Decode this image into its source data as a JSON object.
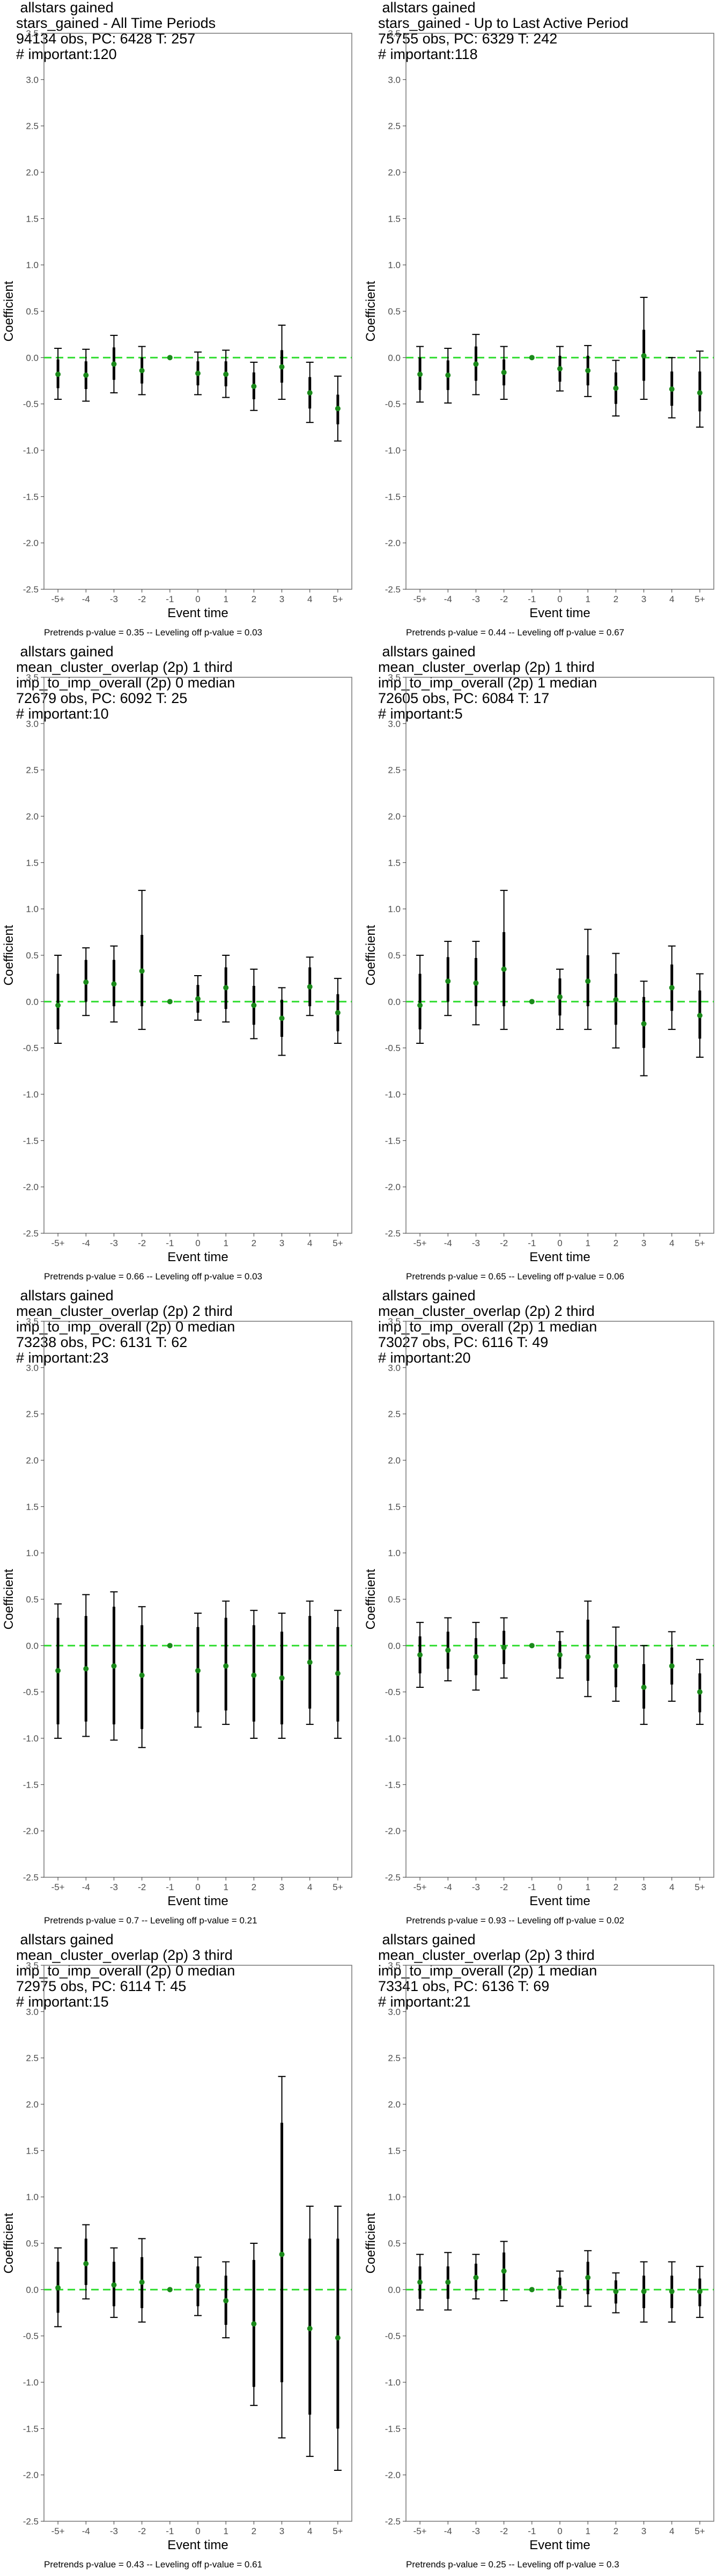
{
  "chart_data": [
    {
      "type": "scatter",
      "title_lines": [
        " allstars gained",
        "stars_gained - All Time Periods",
        "94134 obs, PC: 6428 T: 257",
        "# important:120"
      ],
      "xlabel": "Event time",
      "ylabel": "Coefficient",
      "categories": [
        "-5+",
        "-4",
        "-3",
        "-2",
        "-1",
        "0",
        "1",
        "2",
        "3",
        "4",
        "5+"
      ],
      "ylim": [
        -2.5,
        3.5
      ],
      "yticks": [
        "-2.5",
        "-2.0",
        "-1.5",
        "-1.0",
        "-0.5",
        "0.0",
        "0.5",
        "1.0",
        "1.5",
        "2.0",
        "2.5",
        "3.0",
        "3.5"
      ],
      "reference_line": 0,
      "point": [
        -0.18,
        -0.19,
        -0.07,
        -0.14,
        0.0,
        -0.17,
        -0.18,
        -0.31,
        -0.1,
        -0.38,
        -0.55
      ],
      "ci_inner": [
        [
          -0.33,
          -0.02
        ],
        [
          -0.34,
          -0.04
        ],
        [
          -0.24,
          0.11
        ],
        [
          -0.28,
          0.0
        ],
        [
          0.0,
          0.0
        ],
        [
          -0.3,
          -0.04
        ],
        [
          -0.31,
          -0.04
        ],
        [
          -0.45,
          -0.16
        ],
        [
          -0.27,
          0.08
        ],
        [
          -0.55,
          -0.21
        ],
        [
          -0.72,
          -0.4
        ]
      ],
      "ci_outer": [
        [
          -0.45,
          0.1
        ],
        [
          -0.47,
          0.09
        ],
        [
          -0.38,
          0.24
        ],
        [
          -0.4,
          0.12
        ],
        [
          0.0,
          0.0
        ],
        [
          -0.4,
          0.06
        ],
        [
          -0.43,
          0.08
        ],
        [
          -0.57,
          -0.05
        ],
        [
          -0.45,
          0.35
        ],
        [
          -0.7,
          -0.05
        ],
        [
          -0.9,
          -0.2
        ]
      ],
      "footer": "Pretrends p-value = 0.35 -- Leveling off p-value = 0.03"
    },
    {
      "type": "scatter",
      "title_lines": [
        " allstars gained",
        "stars_gained - Up to Last Active Period",
        "75755 obs, PC: 6329 T: 242",
        "# important:118"
      ],
      "xlabel": "Event time",
      "ylabel": "Coefficient",
      "categories": [
        "-5+",
        "-4",
        "-3",
        "-2",
        "-1",
        "0",
        "1",
        "2",
        "3",
        "4",
        "5+"
      ],
      "ylim": [
        -2.5,
        3.5
      ],
      "yticks": [
        "-2.5",
        "-2.0",
        "-1.5",
        "-1.0",
        "-0.5",
        "0.0",
        "0.5",
        "1.0",
        "1.5",
        "2.0",
        "2.5",
        "3.0",
        "3.5"
      ],
      "reference_line": 0,
      "point": [
        -0.18,
        -0.19,
        -0.07,
        -0.16,
        0.0,
        -0.12,
        -0.14,
        -0.33,
        0.02,
        -0.34,
        -0.38
      ],
      "ci_inner": [
        [
          -0.35,
          0.0
        ],
        [
          -0.35,
          -0.03
        ],
        [
          -0.25,
          0.12
        ],
        [
          -0.3,
          -0.02
        ],
        [
          0.0,
          0.0
        ],
        [
          -0.26,
          0.02
        ],
        [
          -0.3,
          0.02
        ],
        [
          -0.5,
          -0.16
        ],
        [
          -0.25,
          0.3
        ],
        [
          -0.52,
          -0.15
        ],
        [
          -0.58,
          -0.15
        ]
      ],
      "ci_outer": [
        [
          -0.48,
          0.12
        ],
        [
          -0.49,
          0.1
        ],
        [
          -0.4,
          0.25
        ],
        [
          -0.45,
          0.12
        ],
        [
          0.0,
          0.0
        ],
        [
          -0.36,
          0.12
        ],
        [
          -0.42,
          0.13
        ],
        [
          -0.63,
          -0.03
        ],
        [
          -0.45,
          0.65
        ],
        [
          -0.65,
          0.0
        ],
        [
          -0.75,
          0.07
        ]
      ],
      "footer": "Pretrends p-value = 0.44 -- Leveling off p-value = 0.67"
    },
    {
      "type": "scatter",
      "title_lines": [
        " allstars gained",
        "mean_cluster_overlap (2p) 1 third",
        "imp_to_imp_overall (2p) 0 median",
        "72679 obs, PC: 6092 T: 25",
        "# important:10"
      ],
      "xlabel": "Event time",
      "ylabel": "Coefficient",
      "categories": [
        "-5+",
        "-4",
        "-3",
        "-2",
        "-1",
        "0",
        "1",
        "2",
        "3",
        "4",
        "5+"
      ],
      "ylim": [
        -2.5,
        3.5
      ],
      "yticks": [
        "-2.5",
        "-2.0",
        "-1.5",
        "-1.0",
        "-0.5",
        "0.0",
        "0.5",
        "1.0",
        "1.5",
        "2.0",
        "2.5",
        "3.0",
        "3.5"
      ],
      "reference_line": 0,
      "point": [
        -0.04,
        0.21,
        0.19,
        0.33,
        0.0,
        0.03,
        0.15,
        -0.04,
        -0.18,
        0.16,
        -0.12
      ],
      "ci_inner": [
        [
          -0.3,
          0.3
        ],
        [
          0.0,
          0.45
        ],
        [
          -0.05,
          0.45
        ],
        [
          -0.05,
          0.72
        ],
        [
          0.0,
          0.0
        ],
        [
          -0.12,
          0.18
        ],
        [
          -0.08,
          0.37
        ],
        [
          -0.25,
          0.17
        ],
        [
          -0.38,
          0.02
        ],
        [
          -0.05,
          0.37
        ],
        [
          -0.32,
          0.08
        ]
      ],
      "ci_outer": [
        [
          -0.45,
          0.5
        ],
        [
          -0.15,
          0.58
        ],
        [
          -0.22,
          0.6
        ],
        [
          -0.3,
          1.2
        ],
        [
          0.0,
          0.0
        ],
        [
          -0.2,
          0.28
        ],
        [
          -0.22,
          0.5
        ],
        [
          -0.4,
          0.35
        ],
        [
          -0.58,
          0.15
        ],
        [
          -0.15,
          0.48
        ],
        [
          -0.45,
          0.25
        ]
      ],
      "footer": "Pretrends p-value = 0.66 -- Leveling off p-value = 0.03"
    },
    {
      "type": "scatter",
      "title_lines": [
        " allstars gained",
        "mean_cluster_overlap (2p) 1 third",
        "imp_to_imp_overall (2p) 1 median",
        "72605 obs, PC: 6084 T: 17",
        "# important:5"
      ],
      "xlabel": "Event time",
      "ylabel": "Coefficient",
      "categories": [
        "-5+",
        "-4",
        "-3",
        "-2",
        "-1",
        "0",
        "1",
        "2",
        "3",
        "4",
        "5+"
      ],
      "ylim": [
        -2.5,
        3.5
      ],
      "yticks": [
        "-2.5",
        "-2.0",
        "-1.5",
        "-1.0",
        "-0.5",
        "0.0",
        "0.5",
        "1.0",
        "1.5",
        "2.0",
        "2.5",
        "3.0",
        "3.5"
      ],
      "reference_line": 0,
      "point": [
        -0.04,
        0.22,
        0.2,
        0.35,
        0.0,
        0.05,
        0.22,
        0.02,
        -0.24,
        0.15,
        -0.15
      ],
      "ci_inner": [
        [
          -0.3,
          0.3
        ],
        [
          0.0,
          0.48
        ],
        [
          -0.05,
          0.47
        ],
        [
          -0.05,
          0.75
        ],
        [
          0.0,
          0.0
        ],
        [
          -0.15,
          0.25
        ],
        [
          -0.05,
          0.5
        ],
        [
          -0.25,
          0.3
        ],
        [
          -0.5,
          0.05
        ],
        [
          -0.1,
          0.4
        ],
        [
          -0.4,
          0.12
        ]
      ],
      "ci_outer": [
        [
          -0.45,
          0.5
        ],
        [
          -0.15,
          0.65
        ],
        [
          -0.25,
          0.65
        ],
        [
          -0.3,
          1.2
        ],
        [
          0.0,
          0.0
        ],
        [
          -0.3,
          0.35
        ],
        [
          -0.3,
          0.78
        ],
        [
          -0.5,
          0.52
        ],
        [
          -0.8,
          0.22
        ],
        [
          -0.3,
          0.6
        ],
        [
          -0.6,
          0.3
        ]
      ],
      "footer": "Pretrends p-value = 0.65 -- Leveling off p-value = 0.06"
    },
    {
      "type": "scatter",
      "title_lines": [
        " allstars gained",
        "mean_cluster_overlap (2p) 2 third",
        "imp_to_imp_overall (2p) 0 median",
        "73238 obs, PC: 6131 T: 62",
        "# important:23"
      ],
      "xlabel": "Event time",
      "ylabel": "Coefficient",
      "categories": [
        "-5+",
        "-4",
        "-3",
        "-2",
        "-1",
        "0",
        "1",
        "2",
        "3",
        "4",
        "5+"
      ],
      "ylim": [
        -2.5,
        3.5
      ],
      "yticks": [
        "-2.5",
        "-2.0",
        "-1.5",
        "-1.0",
        "-0.5",
        "0.0",
        "0.5",
        "1.0",
        "1.5",
        "2.0",
        "2.5",
        "3.0",
        "3.5"
      ],
      "reference_line": 0,
      "point": [
        -0.27,
        -0.25,
        -0.22,
        -0.32,
        0.0,
        -0.27,
        -0.22,
        -0.32,
        -0.35,
        -0.18,
        -0.3
      ],
      "ci_inner": [
        [
          -0.85,
          0.3
        ],
        [
          -0.82,
          0.32
        ],
        [
          -0.85,
          0.42
        ],
        [
          -0.9,
          0.22
        ],
        [
          0.0,
          0.0
        ],
        [
          -0.72,
          0.2
        ],
        [
          -0.7,
          0.3
        ],
        [
          -0.82,
          0.22
        ],
        [
          -0.85,
          0.15
        ],
        [
          -0.68,
          0.32
        ],
        [
          -0.82,
          0.2
        ]
      ],
      "ci_outer": [
        [
          -1.0,
          0.45
        ],
        [
          -0.98,
          0.55
        ],
        [
          -1.02,
          0.58
        ],
        [
          -1.1,
          0.42
        ],
        [
          0.0,
          0.0
        ],
        [
          -0.88,
          0.35
        ],
        [
          -0.85,
          0.48
        ],
        [
          -1.0,
          0.38
        ],
        [
          -1.0,
          0.35
        ],
        [
          -0.85,
          0.48
        ],
        [
          -1.0,
          0.38
        ]
      ],
      "footer": "Pretrends p-value = 0.7 -- Leveling off p-value = 0.21"
    },
    {
      "type": "scatter",
      "title_lines": [
        " allstars gained",
        "mean_cluster_overlap (2p) 2 third",
        "imp_to_imp_overall (2p) 1 median",
        "73027 obs, PC: 6116 T: 49",
        "# important:20"
      ],
      "xlabel": "Event time",
      "ylabel": "Coefficient",
      "categories": [
        "-5+",
        "-4",
        "-3",
        "-2",
        "-1",
        "0",
        "1",
        "2",
        "3",
        "4",
        "5+"
      ],
      "ylim": [
        -2.5,
        3.5
      ],
      "yticks": [
        "-2.5",
        "-2.0",
        "-1.5",
        "-1.0",
        "-0.5",
        "0.0",
        "0.5",
        "1.0",
        "1.5",
        "2.0",
        "2.5",
        "3.0",
        "3.5"
      ],
      "reference_line": 0,
      "point": [
        -0.1,
        -0.05,
        -0.12,
        -0.02,
        0.0,
        -0.1,
        -0.12,
        -0.22,
        -0.45,
        -0.22,
        -0.5
      ],
      "ci_inner": [
        [
          -0.3,
          0.1
        ],
        [
          -0.25,
          0.15
        ],
        [
          -0.32,
          0.08
        ],
        [
          -0.2,
          0.16
        ],
        [
          0.0,
          0.0
        ],
        [
          -0.25,
          0.05
        ],
        [
          -0.38,
          0.28
        ],
        [
          -0.45,
          0.0
        ],
        [
          -0.68,
          -0.2
        ],
        [
          -0.42,
          -0.02
        ],
        [
          -0.72,
          -0.3
        ]
      ],
      "ci_outer": [
        [
          -0.45,
          0.25
        ],
        [
          -0.38,
          0.3
        ],
        [
          -0.48,
          0.25
        ],
        [
          -0.35,
          0.3
        ],
        [
          0.0,
          0.0
        ],
        [
          -0.35,
          0.15
        ],
        [
          -0.55,
          0.48
        ],
        [
          -0.6,
          0.2
        ],
        [
          -0.85,
          0.0
        ],
        [
          -0.6,
          0.15
        ],
        [
          -0.85,
          -0.15
        ]
      ],
      "footer": "Pretrends p-value = 0.93 -- Leveling off p-value = 0.02"
    },
    {
      "type": "scatter",
      "title_lines": [
        " allstars gained",
        "mean_cluster_overlap (2p) 3 third",
        "imp_to_imp_overall (2p) 0 median",
        "72975 obs, PC: 6114 T: 45",
        "# important:15"
      ],
      "xlabel": "Event time",
      "ylabel": "Coefficient",
      "categories": [
        "-5+",
        "-4",
        "-3",
        "-2",
        "-1",
        "0",
        "1",
        "2",
        "3",
        "4",
        "5+"
      ],
      "ylim": [
        -2.5,
        3.5
      ],
      "yticks": [
        "-2.5",
        "-2.0",
        "-1.5",
        "-1.0",
        "-0.5",
        "0.0",
        "0.5",
        "1.0",
        "1.5",
        "2.0",
        "2.5",
        "3.0",
        "3.5"
      ],
      "reference_line": 0,
      "point": [
        0.02,
        0.28,
        0.05,
        0.08,
        0.0,
        0.04,
        -0.12,
        -0.37,
        0.38,
        -0.42,
        -0.52
      ],
      "ci_inner": [
        [
          -0.25,
          0.3
        ],
        [
          0.05,
          0.55
        ],
        [
          -0.18,
          0.3
        ],
        [
          -0.2,
          0.35
        ],
        [
          0.0,
          0.0
        ],
        [
          -0.18,
          0.25
        ],
        [
          -0.38,
          0.15
        ],
        [
          -1.05,
          0.32
        ],
        [
          -1.0,
          1.8
        ],
        [
          -1.35,
          0.55
        ],
        [
          -1.5,
          0.55
        ]
      ],
      "ci_outer": [
        [
          -0.4,
          0.45
        ],
        [
          -0.1,
          0.7
        ],
        [
          -0.3,
          0.45
        ],
        [
          -0.35,
          0.55
        ],
        [
          0.0,
          0.0
        ],
        [
          -0.28,
          0.35
        ],
        [
          -0.52,
          0.3
        ],
        [
          -1.25,
          0.5
        ],
        [
          -1.6,
          2.3
        ],
        [
          -1.8,
          0.9
        ],
        [
          -1.95,
          0.9
        ]
      ],
      "footer": "Pretrends p-value = 0.43 -- Leveling off p-value = 0.61"
    },
    {
      "type": "scatter",
      "title_lines": [
        " allstars gained",
        "mean_cluster_overlap (2p) 3 third",
        "imp_to_imp_overall (2p) 1 median",
        "73341 obs, PC: 6136 T: 69",
        "# important:21"
      ],
      "xlabel": "Event time",
      "ylabel": "Coefficient",
      "categories": [
        "-5+",
        "-4",
        "-3",
        "-2",
        "-1",
        "0",
        "1",
        "2",
        "3",
        "4",
        "5+"
      ],
      "ylim": [
        -2.5,
        3.5
      ],
      "yticks": [
        "-2.5",
        "-2.0",
        "-1.5",
        "-1.0",
        "-0.5",
        "0.0",
        "0.5",
        "1.0",
        "1.5",
        "2.0",
        "2.5",
        "3.0",
        "3.5"
      ],
      "reference_line": 0,
      "point": [
        0.08,
        0.08,
        0.13,
        0.2,
        0.0,
        0.02,
        0.13,
        -0.02,
        -0.02,
        -0.02,
        -0.02
      ],
      "ci_inner": [
        [
          -0.1,
          0.25
        ],
        [
          -0.1,
          0.25
        ],
        [
          -0.02,
          0.28
        ],
        [
          0.0,
          0.4
        ],
        [
          0.0,
          0.0
        ],
        [
          -0.1,
          0.13
        ],
        [
          -0.05,
          0.3
        ],
        [
          -0.15,
          0.1
        ],
        [
          -0.2,
          0.15
        ],
        [
          -0.2,
          0.15
        ],
        [
          -0.18,
          0.12
        ]
      ],
      "ci_outer": [
        [
          -0.22,
          0.38
        ],
        [
          -0.22,
          0.4
        ],
        [
          -0.1,
          0.38
        ],
        [
          -0.12,
          0.52
        ],
        [
          0.0,
          0.0
        ],
        [
          -0.18,
          0.2
        ],
        [
          -0.18,
          0.42
        ],
        [
          -0.25,
          0.18
        ],
        [
          -0.35,
          0.3
        ],
        [
          -0.35,
          0.3
        ],
        [
          -0.3,
          0.25
        ]
      ],
      "footer": "Pretrends p-value = 0.25 -- Leveling off p-value = 0.3"
    }
  ],
  "colors": {
    "point": "#1a8a1a",
    "reference_line": "#33dd33",
    "ci": "#000000",
    "frame": "#777777",
    "tick_text": "#4d4d4d"
  }
}
